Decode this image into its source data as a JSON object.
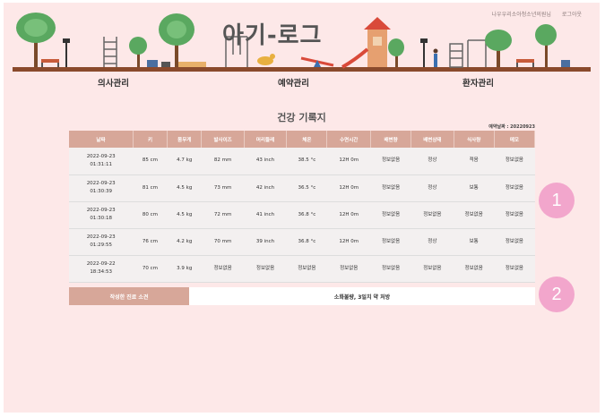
{
  "header": {
    "top_links": [
      "나우우리소아청소년의원님",
      "로그아웃"
    ],
    "app_title": "아기-로그"
  },
  "nav": {
    "items": [
      "의사관리",
      "예약관리",
      "환자관리"
    ]
  },
  "page_title": "건강 기록지",
  "reference_date": "예약날짜 : 20220923",
  "table": {
    "columns": [
      "날짜",
      "키",
      "몸무게",
      "발사이즈",
      "머리둘레",
      "체온",
      "수면시간",
      "배변량",
      "배변상태",
      "식사량",
      "메모"
    ],
    "rows": [
      [
        "2022-09-23\n01:31:11",
        "85 cm",
        "4.7 kg",
        "82 mm",
        "43 inch",
        "38.5 °c",
        "12H 0m",
        "정보없음",
        "정상",
        "적음",
        "정보없음"
      ],
      [
        "2022-09-23\n01:30:39",
        "81 cm",
        "4.5 kg",
        "73 mm",
        "42 inch",
        "36.5 °c",
        "12H 0m",
        "정보없음",
        "정상",
        "보통",
        "정보없음"
      ],
      [
        "2022-09-23\n01:30:18",
        "80 cm",
        "4.5 kg",
        "72 mm",
        "41 inch",
        "36.8 °c",
        "12H 0m",
        "정보없음",
        "정보없음",
        "정보없음",
        "정보없음"
      ],
      [
        "2022-09-23\n01:29:55",
        "76 cm",
        "4.2 kg",
        "70 mm",
        "39 inch",
        "36.8 °c",
        "12H 0m",
        "정보없음",
        "정상",
        "보통",
        "정보없음"
      ],
      [
        "2022-09-22\n18:34:53",
        "70 cm",
        "3.9 kg",
        "정보없음",
        "정보없음",
        "정보없음",
        "정보없음",
        "정보없음",
        "정보없음",
        "정보없음",
        "정보없음"
      ]
    ]
  },
  "opinion": {
    "label": "작성한 진료 소견",
    "value": "소화불량, 3일치 약 처방"
  },
  "badges": [
    "1",
    "2"
  ],
  "colors": {
    "background": "#fde8e8",
    "header_cell": "#d7a799",
    "badge": "#f2a6cc"
  }
}
